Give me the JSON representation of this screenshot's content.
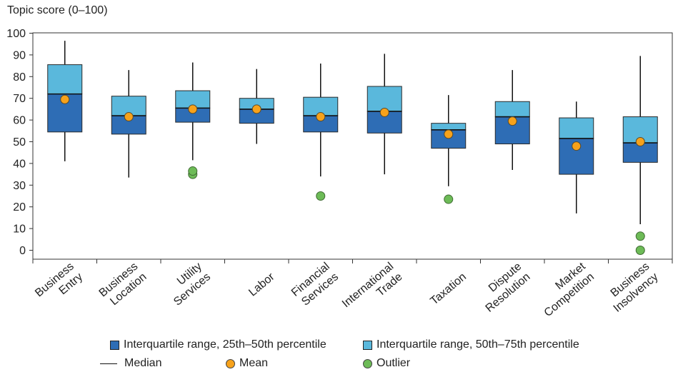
{
  "chart_data": {
    "type": "boxplot",
    "ylabel": "Topic score (0–100)",
    "ylim": [
      0,
      100
    ],
    "yticks": [
      0,
      10,
      20,
      30,
      40,
      50,
      60,
      70,
      80,
      90,
      100
    ],
    "categories": [
      [
        "Business",
        "Entry"
      ],
      [
        "Business",
        "Location"
      ],
      [
        "Utility",
        "Services"
      ],
      [
        "Labor"
      ],
      [
        "Financial",
        "Services"
      ],
      [
        "International",
        "Trade"
      ],
      [
        "Taxation"
      ],
      [
        "Dispute",
        "Resolution"
      ],
      [
        "Market",
        "Competition"
      ],
      [
        "Business",
        "Insolvency"
      ]
    ],
    "series": [
      {
        "name": "Business Entry",
        "min": 41,
        "q1": 54.5,
        "median": 72,
        "q3": 85.5,
        "max": 96.5,
        "mean": 69.5,
        "outliers": []
      },
      {
        "name": "Business Location",
        "min": 33.5,
        "q1": 53.5,
        "median": 62,
        "q3": 71,
        "max": 83,
        "mean": 61.5,
        "outliers": []
      },
      {
        "name": "Utility Services",
        "min": 41.5,
        "q1": 59,
        "median": 65.5,
        "q3": 73.5,
        "max": 86.5,
        "mean": 65,
        "outliers": [
          35,
          36.5
        ]
      },
      {
        "name": "Labor",
        "min": 49,
        "q1": 58.5,
        "median": 65,
        "q3": 70,
        "max": 83.5,
        "mean": 65,
        "outliers": []
      },
      {
        "name": "Financial Services",
        "min": 34,
        "q1": 54.5,
        "median": 62,
        "q3": 70.5,
        "max": 86,
        "mean": 61.5,
        "outliers": [
          25
        ]
      },
      {
        "name": "International Trade",
        "min": 35,
        "q1": 54,
        "median": 64,
        "q3": 75.5,
        "max": 90.5,
        "mean": 63.5,
        "outliers": []
      },
      {
        "name": "Taxation",
        "min": 29.5,
        "q1": 47,
        "median": 55.5,
        "q3": 58.5,
        "max": 71.5,
        "mean": 53.5,
        "outliers": [
          23.5
        ]
      },
      {
        "name": "Dispute Resolution",
        "min": 37,
        "q1": 49,
        "median": 61.5,
        "q3": 68.5,
        "max": 83,
        "mean": 59.5,
        "outliers": []
      },
      {
        "name": "Market Competition",
        "min": 17,
        "q1": 35,
        "median": 51.5,
        "q3": 61,
        "max": 68.5,
        "mean": 48,
        "outliers": []
      },
      {
        "name": "Business Insolvency",
        "min": 12,
        "q1": 40.5,
        "median": 49.5,
        "q3": 61.5,
        "max": 89.5,
        "mean": 50,
        "outliers": [
          6.5,
          0
        ]
      }
    ],
    "colors": {
      "lower_box": "#2e6db5",
      "upper_box": "#5ab8dc",
      "median": "#111111",
      "mean": "#f7a21b",
      "outlier": "#6dbb57",
      "axis": "#333333"
    }
  },
  "legend": {
    "lower_box": "Interquartile range, 25th–50th percentile",
    "upper_box": "Interquartile range, 50th–75th percentile",
    "median": "Median",
    "mean": "Mean",
    "outlier": "Outlier"
  }
}
